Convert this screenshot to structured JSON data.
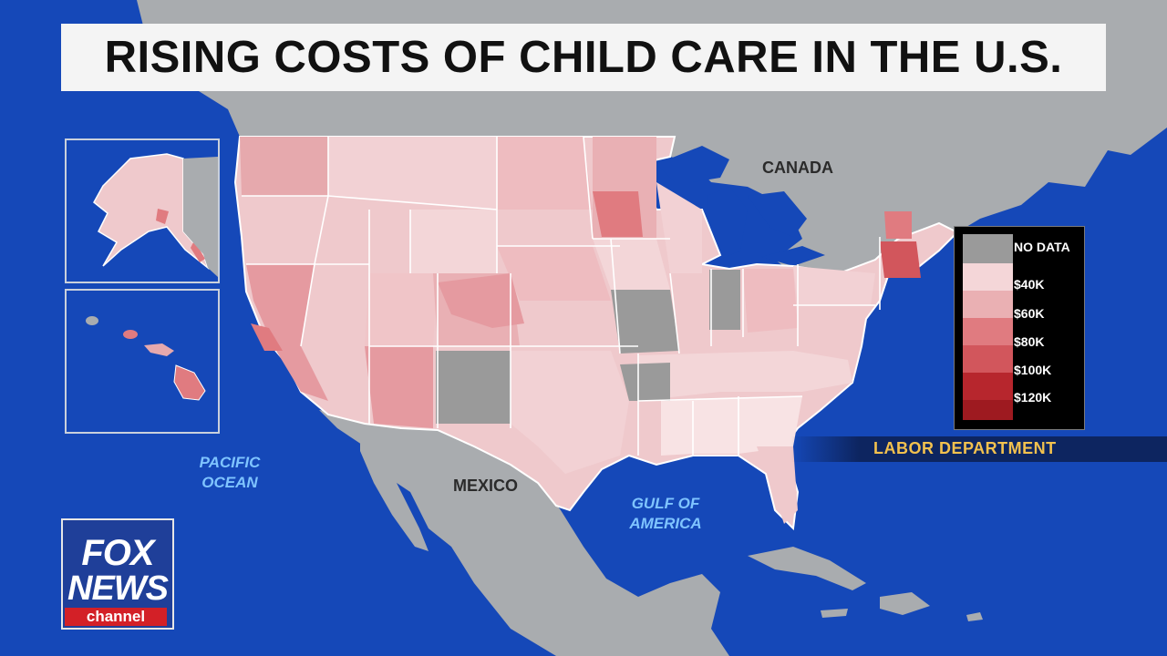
{
  "title": "RISING COSTS OF CHILD CARE IN THE U.S.",
  "labels": {
    "canada": "CANADA",
    "mexico": "MEXICO",
    "pacific_line1": "PACIFIC",
    "pacific_line2": "OCEAN",
    "gulf_line1": "GULF OF",
    "gulf_line2": "AMERICA"
  },
  "legend": {
    "items": [
      {
        "label": "NO DATA",
        "color": "#9a9a9a"
      },
      {
        "label": "$40K",
        "color": "#f4d6d8"
      },
      {
        "label": "$60K",
        "color": "#eab0b3"
      },
      {
        "label": "$80K",
        "color": "#e07b80"
      },
      {
        "label": "$100K",
        "color": "#d2565c"
      },
      {
        "label": "$120K",
        "color": "#b7262d"
      },
      {
        "label": "",
        "color": "#9e1a20"
      }
    ]
  },
  "source": "LABOR DEPARTMENT",
  "logo": {
    "line1": "FOX",
    "line2": "NEWS",
    "line3": "channel"
  },
  "colors": {
    "ocean": "#1548b8",
    "land": "#a9acaf",
    "no_data": "#9a9a9a",
    "state_base": "#efc9cc",
    "border": "#ffffff"
  }
}
